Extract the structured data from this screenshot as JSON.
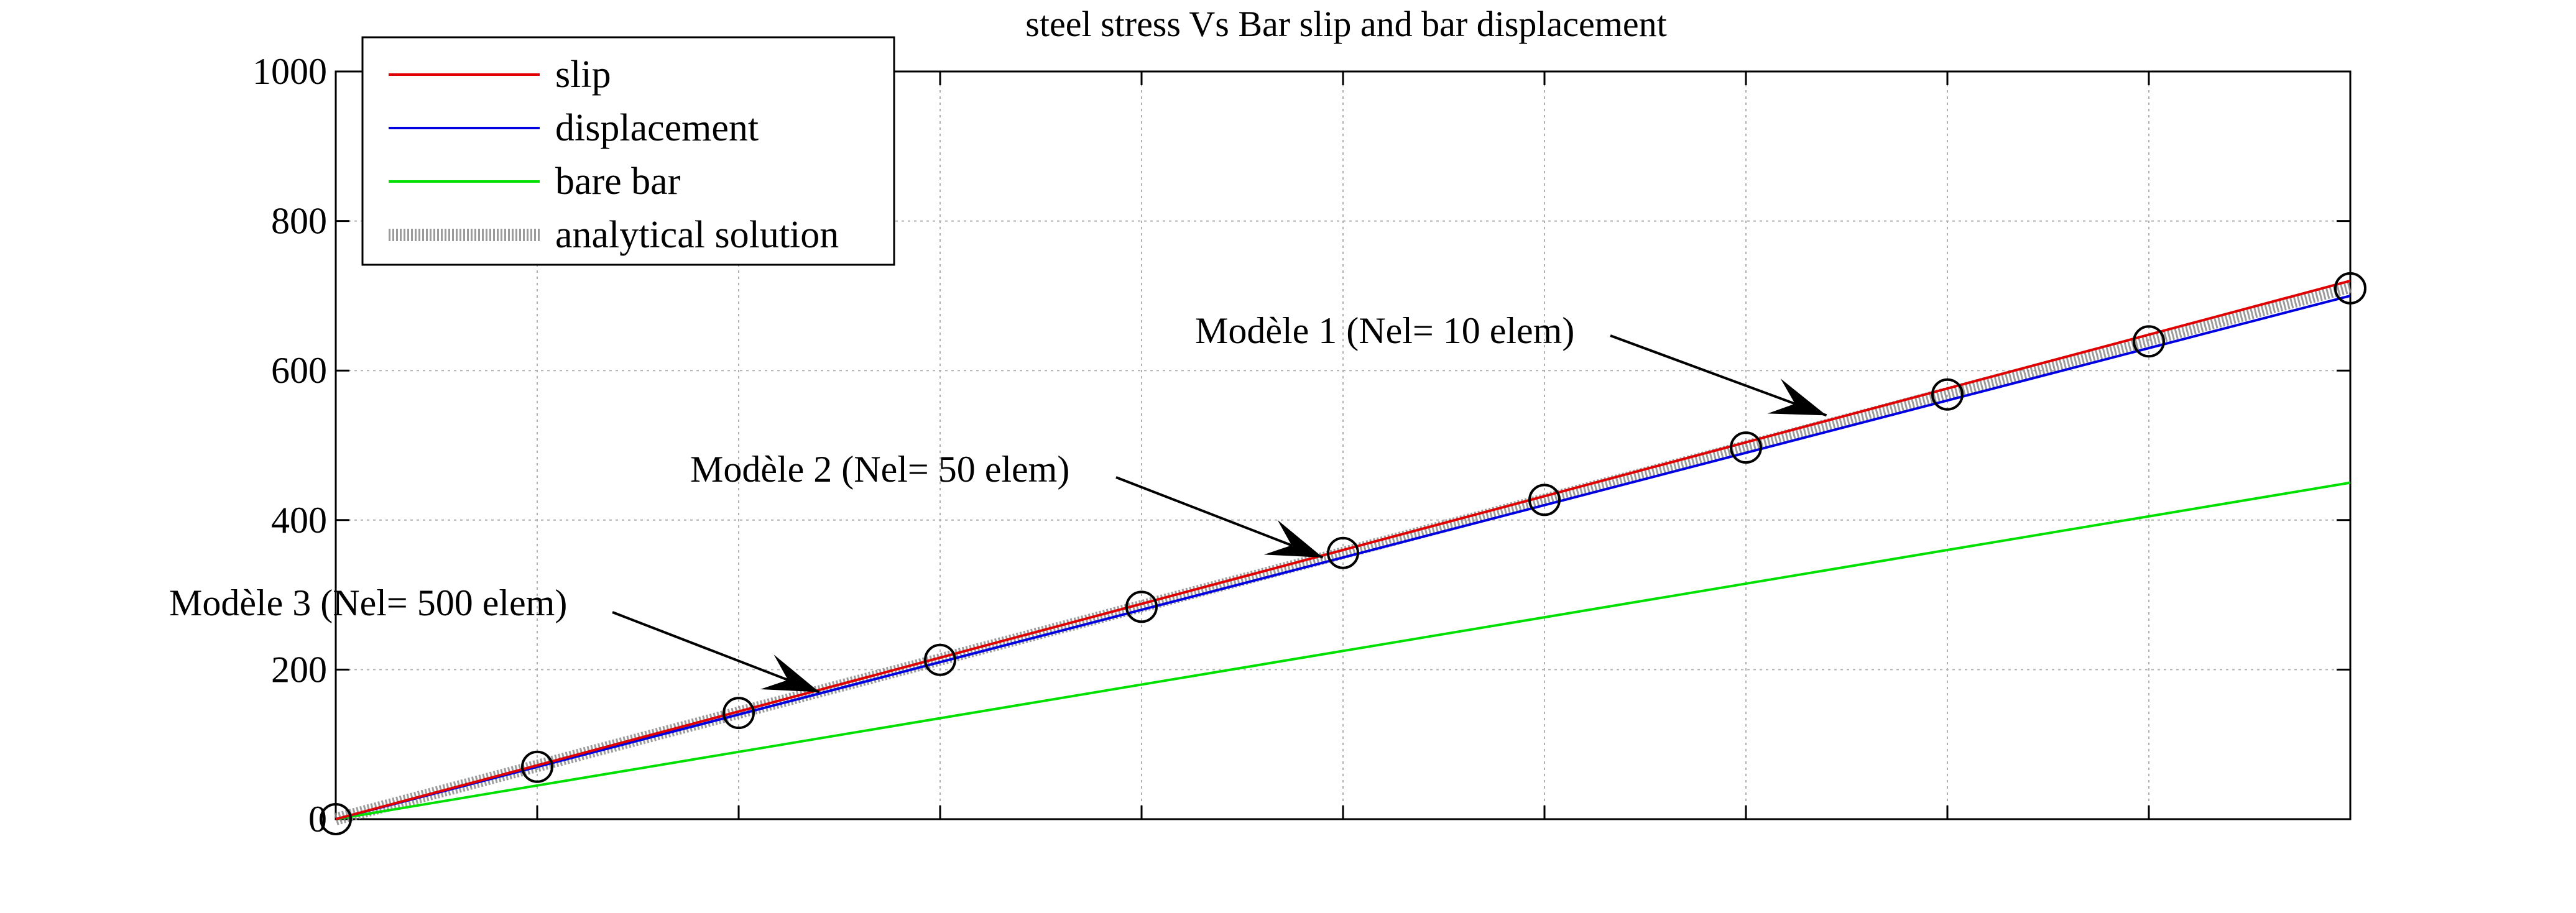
{
  "chart_data": {
    "type": "line",
    "title": "steel stress Vs Bar slip and bar displacement",
    "xlabel": "",
    "ylabel": "",
    "xlim": [
      0,
      10
    ],
    "ylim": [
      0,
      1000
    ],
    "yticks": [
      0,
      200,
      400,
      600,
      800,
      1000
    ],
    "ytick_labels": [
      "0",
      "200",
      "400",
      "600",
      "800",
      "1000"
    ],
    "xticks": [
      0,
      1,
      2,
      3,
      4,
      5,
      6,
      7,
      8,
      9,
      10
    ],
    "grid": true,
    "legend_position": "top-left",
    "series": [
      {
        "name": "slip",
        "color": "#e00000",
        "style": "solid",
        "x": [
          0,
          10
        ],
        "y": [
          0,
          720
        ]
      },
      {
        "name": "displacement",
        "color": "#0000e0",
        "style": "solid",
        "x": [
          0,
          10
        ],
        "y": [
          0,
          700
        ]
      },
      {
        "name": "bare bar",
        "color": "#00e000",
        "style": "solid",
        "x": [
          0,
          10
        ],
        "y": [
          0,
          450
        ]
      },
      {
        "name": "analytical solution",
        "color": "#8a8a8a",
        "style": "hatched-band",
        "x": [
          0,
          10
        ],
        "y": [
          0,
          712
        ]
      }
    ],
    "markers": {
      "shape": "open-circle",
      "x": [
        0,
        1,
        2,
        3,
        4,
        5,
        6,
        7,
        8,
        9,
        10
      ],
      "y": [
        0,
        70,
        142,
        213,
        284,
        356,
        427,
        497,
        568,
        639,
        710
      ]
    },
    "annotations": [
      {
        "text": "Modèle 1 (Nel= 10 elem)",
        "target_x": 7.4,
        "target_y": 540
      },
      {
        "text": "Modèle 2 (Nel= 50 elem)",
        "target_x": 4.9,
        "target_y": 350
      },
      {
        "text": "Modèle 3 (Nel= 500 elem)",
        "target_x": 2.4,
        "target_y": 170
      }
    ]
  }
}
